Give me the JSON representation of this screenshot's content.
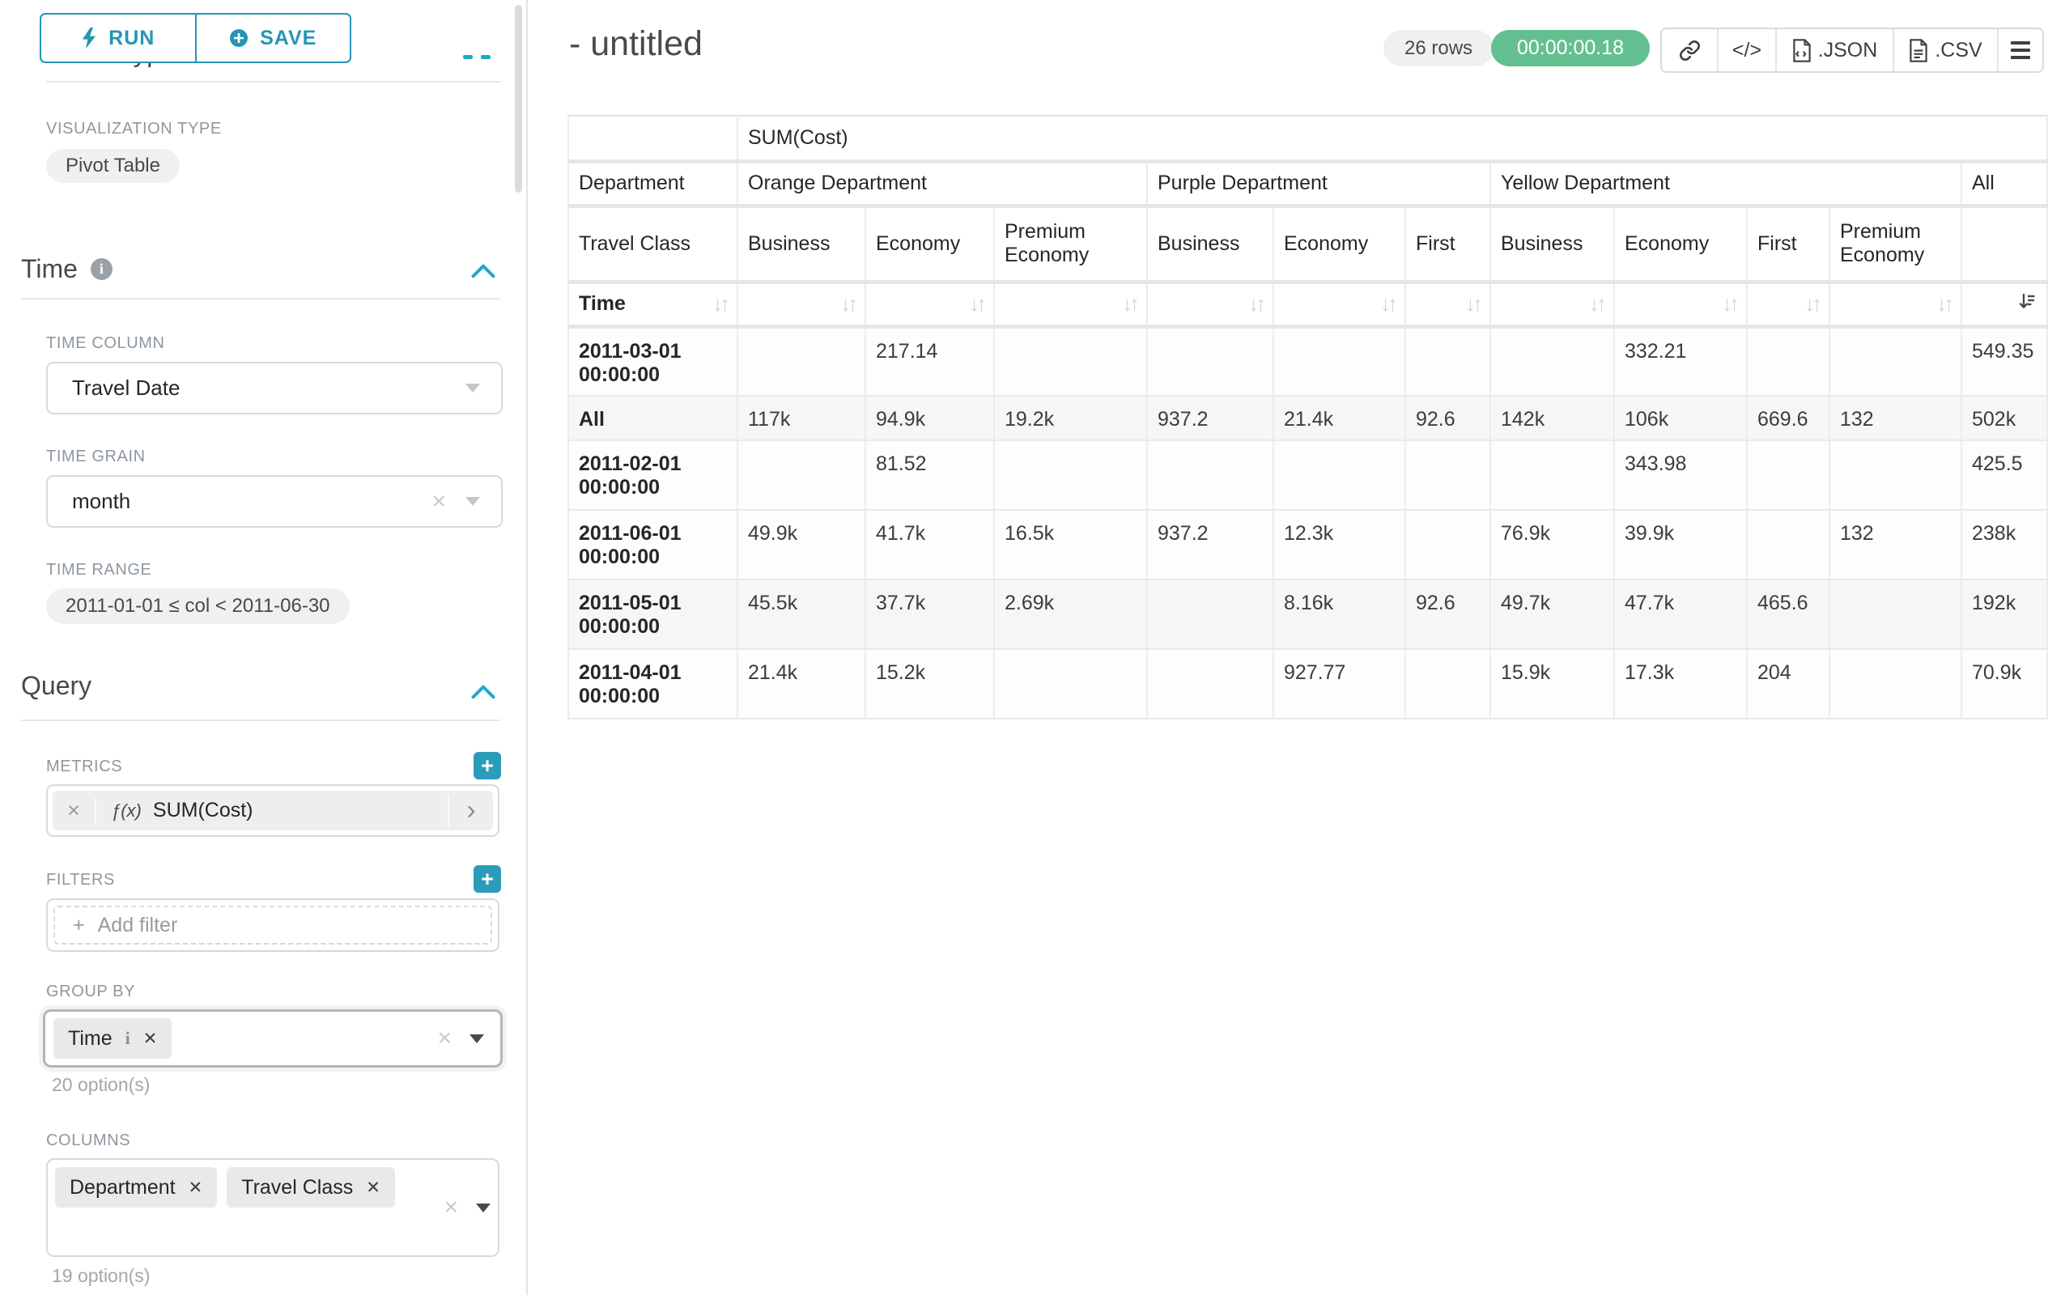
{
  "colors": {
    "primary_teal": "#20a7c9",
    "timer_green": "#65c08f",
    "pill_gray": "#f0f0f0",
    "text_dark": "#262626",
    "label_gray": "#8e979f"
  },
  "sidebar": {
    "run_label": "RUN",
    "save_label": "SAVE",
    "chart_type_heading": "Chart Type",
    "viz_type_label": "VISUALIZATION TYPE",
    "viz_type_value": "Pivot Table",
    "time_section_title": "Time",
    "time_column_label": "TIME COLUMN",
    "time_column_value": "Travel Date",
    "time_grain_label": "TIME GRAIN",
    "time_grain_value": "month",
    "time_range_label": "TIME RANGE",
    "time_range_value": "2011-01-01 ≤ col < 2011-06-30",
    "query_section_title": "Query",
    "metrics_label": "METRICS",
    "metric_fx": "ƒ(x)",
    "metric_value": "SUM(Cost)",
    "filters_label": "FILTERS",
    "add_filter_label": "Add filter",
    "group_by_label": "GROUP BY",
    "group_by_chips": [
      "Time"
    ],
    "group_by_options_note": "20 option(s)",
    "columns_label": "COLUMNS",
    "columns_chips": [
      "Department",
      "Travel Class"
    ],
    "columns_options_note": "19 option(s)"
  },
  "header": {
    "title": "- untitled",
    "row_count": "26 rows",
    "timer": "00:00:00.18",
    "json_label": ".JSON",
    "csv_label": ".CSV"
  },
  "pivot": {
    "metric_header": "SUM(Cost)",
    "corner_label": "Department",
    "row_header_label": "Travel Class",
    "sort_row_label": "Time",
    "column_groups": [
      {
        "label": "Orange Department",
        "children": [
          "Business",
          "Economy",
          "Premium Economy"
        ]
      },
      {
        "label": "Purple Department",
        "children": [
          "Business",
          "Economy",
          "First"
        ]
      },
      {
        "label": "Yellow Department",
        "children": [
          "Business",
          "Economy",
          "First",
          "Premium Economy"
        ]
      },
      {
        "label": "All",
        "children": [
          ""
        ]
      }
    ],
    "rows": [
      {
        "label": "2011-03-01 00:00:00",
        "values": [
          "",
          "217.14",
          "",
          "",
          "",
          "",
          "",
          "332.21",
          "",
          "",
          "549.35"
        ]
      },
      {
        "label": "All",
        "values": [
          "117k",
          "94.9k",
          "19.2k",
          "937.2",
          "21.4k",
          "92.6",
          "142k",
          "106k",
          "669.6",
          "132",
          "502k"
        ]
      },
      {
        "label": "2011-02-01 00:00:00",
        "values": [
          "",
          "81.52",
          "",
          "",
          "",
          "",
          "",
          "343.98",
          "",
          "",
          "425.5"
        ]
      },
      {
        "label": "2011-06-01 00:00:00",
        "values": [
          "49.9k",
          "41.7k",
          "16.5k",
          "937.2",
          "12.3k",
          "",
          "76.9k",
          "39.9k",
          "",
          "132",
          "238k"
        ]
      },
      {
        "label": "2011-05-01 00:00:00",
        "values": [
          "45.5k",
          "37.7k",
          "2.69k",
          "",
          "8.16k",
          "92.6",
          "49.7k",
          "47.7k",
          "465.6",
          "",
          "192k"
        ]
      },
      {
        "label": "2011-04-01 00:00:00",
        "values": [
          "21.4k",
          "15.2k",
          "",
          "",
          "927.77",
          "",
          "15.9k",
          "17.3k",
          "204",
          "",
          "70.9k"
        ]
      }
    ]
  }
}
